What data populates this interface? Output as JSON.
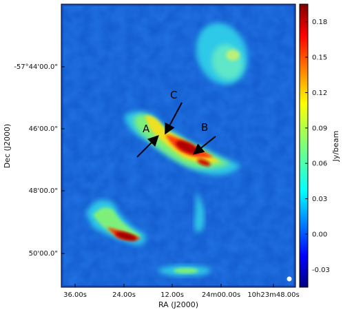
{
  "image": {
    "axes": {
      "xlabel": "RA (J2000)",
      "ylabel": "Dec (J2000)",
      "x_ticks": [
        "36.00s",
        "24.00s",
        "12.00s",
        "24m00.00s",
        "10h23m48.00s"
      ],
      "y_ticks": [
        "-57°44'00.0\"",
        "46'00.0\"",
        "48'00.0\"",
        "50'00.0\""
      ]
    },
    "colorbar": {
      "label": "Jy/beam",
      "ticks": [
        "0.18",
        "0.15",
        "0.12",
        "0.09",
        "0.06",
        "0.03",
        "0.00",
        "-0.03"
      ],
      "range": [
        -0.045,
        0.195
      ],
      "colormap": "jet"
    },
    "annotations": [
      "A",
      "B",
      "C"
    ],
    "colors": {
      "background_map": "#1f6fe0",
      "peak": "#8b0000",
      "arrow": "#000000"
    }
  }
}
